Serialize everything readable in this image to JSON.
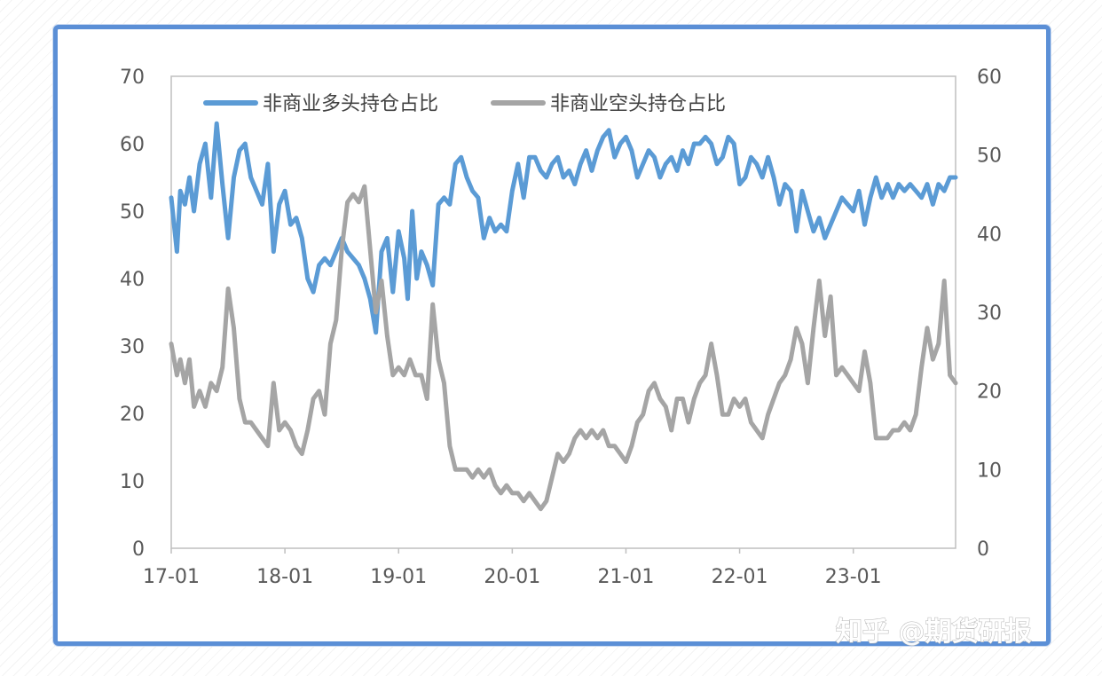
{
  "chart_data": {
    "type": "line",
    "left_axis": {
      "ticks": [
        "0",
        "10",
        "20",
        "30",
        "40",
        "50",
        "60",
        "70"
      ],
      "range": [
        0,
        70
      ]
    },
    "right_axis": {
      "ticks": [
        "0",
        "10",
        "20",
        "30",
        "40",
        "50",
        "60"
      ],
      "range": [
        0,
        60
      ]
    },
    "x_ticks": [
      "17-01",
      "18-01",
      "19-01",
      "20-01",
      "21-01",
      "22-01",
      "23-01"
    ],
    "x_range": [
      2017.0,
      2023.9
    ],
    "legend": {
      "position": "top-left"
    },
    "series": [
      {
        "name": "非商业多头持仓占比",
        "axis": "left",
        "color": "#5b9bd5",
        "points": [
          [
            2017.0,
            52
          ],
          [
            2017.05,
            44
          ],
          [
            2017.08,
            53
          ],
          [
            2017.12,
            51
          ],
          [
            2017.16,
            55
          ],
          [
            2017.2,
            50
          ],
          [
            2017.25,
            57
          ],
          [
            2017.3,
            60
          ],
          [
            2017.35,
            52
          ],
          [
            2017.4,
            63
          ],
          [
            2017.45,
            54
          ],
          [
            2017.5,
            46
          ],
          [
            2017.55,
            55
          ],
          [
            2017.6,
            59
          ],
          [
            2017.65,
            60
          ],
          [
            2017.7,
            55
          ],
          [
            2017.75,
            53
          ],
          [
            2017.8,
            51
          ],
          [
            2017.85,
            57
          ],
          [
            2017.9,
            44
          ],
          [
            2017.95,
            51
          ],
          [
            2018.0,
            53
          ],
          [
            2018.05,
            48
          ],
          [
            2018.1,
            49
          ],
          [
            2018.15,
            46
          ],
          [
            2018.2,
            40
          ],
          [
            2018.25,
            38
          ],
          [
            2018.3,
            42
          ],
          [
            2018.35,
            43
          ],
          [
            2018.4,
            42
          ],
          [
            2018.45,
            44
          ],
          [
            2018.5,
            46
          ],
          [
            2018.55,
            44
          ],
          [
            2018.6,
            43
          ],
          [
            2018.65,
            42
          ],
          [
            2018.7,
            40
          ],
          [
            2018.75,
            37
          ],
          [
            2018.8,
            32
          ],
          [
            2018.85,
            44
          ],
          [
            2018.9,
            46
          ],
          [
            2018.95,
            38
          ],
          [
            2019.0,
            47
          ],
          [
            2019.05,
            43
          ],
          [
            2019.08,
            37
          ],
          [
            2019.12,
            50
          ],
          [
            2019.16,
            40
          ],
          [
            2019.2,
            44
          ],
          [
            2019.25,
            42
          ],
          [
            2019.3,
            39
          ],
          [
            2019.35,
            51
          ],
          [
            2019.4,
            52
          ],
          [
            2019.45,
            51
          ],
          [
            2019.5,
            57
          ],
          [
            2019.55,
            58
          ],
          [
            2019.6,
            55
          ],
          [
            2019.65,
            53
          ],
          [
            2019.7,
            52
          ],
          [
            2019.75,
            46
          ],
          [
            2019.8,
            49
          ],
          [
            2019.85,
            47
          ],
          [
            2019.9,
            48
          ],
          [
            2019.95,
            47
          ],
          [
            2020.0,
            53
          ],
          [
            2020.05,
            57
          ],
          [
            2020.1,
            52
          ],
          [
            2020.15,
            58
          ],
          [
            2020.2,
            58
          ],
          [
            2020.25,
            56
          ],
          [
            2020.3,
            55
          ],
          [
            2020.35,
            57
          ],
          [
            2020.4,
            58
          ],
          [
            2020.45,
            55
          ],
          [
            2020.5,
            56
          ],
          [
            2020.55,
            54
          ],
          [
            2020.6,
            57
          ],
          [
            2020.65,
            59
          ],
          [
            2020.7,
            56
          ],
          [
            2020.75,
            59
          ],
          [
            2020.8,
            61
          ],
          [
            2020.85,
            62
          ],
          [
            2020.9,
            58
          ],
          [
            2020.95,
            60
          ],
          [
            2021.0,
            61
          ],
          [
            2021.05,
            59
          ],
          [
            2021.1,
            55
          ],
          [
            2021.15,
            57
          ],
          [
            2021.2,
            59
          ],
          [
            2021.25,
            58
          ],
          [
            2021.3,
            55
          ],
          [
            2021.35,
            57
          ],
          [
            2021.4,
            58
          ],
          [
            2021.45,
            56
          ],
          [
            2021.5,
            59
          ],
          [
            2021.55,
            57
          ],
          [
            2021.6,
            60
          ],
          [
            2021.65,
            60
          ],
          [
            2021.7,
            61
          ],
          [
            2021.75,
            60
          ],
          [
            2021.8,
            57
          ],
          [
            2021.85,
            58
          ],
          [
            2021.9,
            61
          ],
          [
            2021.95,
            60
          ],
          [
            2022.0,
            54
          ],
          [
            2022.05,
            55
          ],
          [
            2022.1,
            58
          ],
          [
            2022.15,
            57
          ],
          [
            2022.2,
            55
          ],
          [
            2022.25,
            58
          ],
          [
            2022.3,
            55
          ],
          [
            2022.35,
            51
          ],
          [
            2022.4,
            54
          ],
          [
            2022.45,
            53
          ],
          [
            2022.5,
            47
          ],
          [
            2022.55,
            53
          ],
          [
            2022.6,
            50
          ],
          [
            2022.65,
            47
          ],
          [
            2022.7,
            49
          ],
          [
            2022.75,
            46
          ],
          [
            2022.8,
            48
          ],
          [
            2022.85,
            50
          ],
          [
            2022.9,
            52
          ],
          [
            2022.95,
            51
          ],
          [
            2023.0,
            50
          ],
          [
            2023.05,
            53
          ],
          [
            2023.1,
            48
          ],
          [
            2023.15,
            52
          ],
          [
            2023.2,
            55
          ],
          [
            2023.25,
            52
          ],
          [
            2023.3,
            54
          ],
          [
            2023.35,
            52
          ],
          [
            2023.4,
            54
          ],
          [
            2023.45,
            53
          ],
          [
            2023.5,
            54
          ],
          [
            2023.55,
            53
          ],
          [
            2023.6,
            52
          ],
          [
            2023.65,
            54
          ],
          [
            2023.7,
            51
          ],
          [
            2023.75,
            54
          ],
          [
            2023.8,
            53
          ],
          [
            2023.85,
            55
          ],
          [
            2023.9,
            55
          ]
        ]
      },
      {
        "name": "非商业空头持仓占比",
        "axis": "right",
        "color": "#a5a5a5",
        "points": [
          [
            2017.0,
            26
          ],
          [
            2017.05,
            22
          ],
          [
            2017.08,
            24
          ],
          [
            2017.12,
            21
          ],
          [
            2017.16,
            24
          ],
          [
            2017.2,
            18
          ],
          [
            2017.25,
            20
          ],
          [
            2017.3,
            18
          ],
          [
            2017.35,
            21
          ],
          [
            2017.4,
            20
          ],
          [
            2017.45,
            23
          ],
          [
            2017.5,
            33
          ],
          [
            2017.55,
            28
          ],
          [
            2017.6,
            19
          ],
          [
            2017.65,
            16
          ],
          [
            2017.7,
            16
          ],
          [
            2017.75,
            15
          ],
          [
            2017.8,
            14
          ],
          [
            2017.85,
            13
          ],
          [
            2017.9,
            21
          ],
          [
            2017.95,
            15
          ],
          [
            2018.0,
            16
          ],
          [
            2018.05,
            15
          ],
          [
            2018.1,
            13
          ],
          [
            2018.15,
            12
          ],
          [
            2018.2,
            15
          ],
          [
            2018.25,
            19
          ],
          [
            2018.3,
            20
          ],
          [
            2018.35,
            17
          ],
          [
            2018.4,
            26
          ],
          [
            2018.45,
            29
          ],
          [
            2018.5,
            38
          ],
          [
            2018.55,
            44
          ],
          [
            2018.6,
            45
          ],
          [
            2018.65,
            44
          ],
          [
            2018.7,
            46
          ],
          [
            2018.75,
            38
          ],
          [
            2018.8,
            30
          ],
          [
            2018.85,
            34
          ],
          [
            2018.9,
            27
          ],
          [
            2018.95,
            22
          ],
          [
            2019.0,
            23
          ],
          [
            2019.05,
            22
          ],
          [
            2019.1,
            24
          ],
          [
            2019.15,
            22
          ],
          [
            2019.2,
            22
          ],
          [
            2019.25,
            19
          ],
          [
            2019.3,
            31
          ],
          [
            2019.35,
            24
          ],
          [
            2019.4,
            21
          ],
          [
            2019.45,
            13
          ],
          [
            2019.5,
            10
          ],
          [
            2019.55,
            10
          ],
          [
            2019.6,
            10
          ],
          [
            2019.65,
            9
          ],
          [
            2019.7,
            10
          ],
          [
            2019.75,
            9
          ],
          [
            2019.8,
            10
          ],
          [
            2019.85,
            8
          ],
          [
            2019.9,
            7
          ],
          [
            2019.95,
            8
          ],
          [
            2020.0,
            7
          ],
          [
            2020.05,
            7
          ],
          [
            2020.1,
            6
          ],
          [
            2020.15,
            7
          ],
          [
            2020.2,
            6
          ],
          [
            2020.25,
            5
          ],
          [
            2020.3,
            6
          ],
          [
            2020.35,
            9
          ],
          [
            2020.4,
            12
          ],
          [
            2020.45,
            11
          ],
          [
            2020.5,
            12
          ],
          [
            2020.55,
            14
          ],
          [
            2020.6,
            15
          ],
          [
            2020.65,
            14
          ],
          [
            2020.7,
            15
          ],
          [
            2020.75,
            14
          ],
          [
            2020.8,
            15
          ],
          [
            2020.85,
            13
          ],
          [
            2020.9,
            13
          ],
          [
            2020.95,
            12
          ],
          [
            2021.0,
            11
          ],
          [
            2021.05,
            13
          ],
          [
            2021.1,
            16
          ],
          [
            2021.15,
            17
          ],
          [
            2021.2,
            20
          ],
          [
            2021.25,
            21
          ],
          [
            2021.3,
            19
          ],
          [
            2021.35,
            18
          ],
          [
            2021.4,
            15
          ],
          [
            2021.45,
            19
          ],
          [
            2021.5,
            19
          ],
          [
            2021.55,
            16
          ],
          [
            2021.6,
            19
          ],
          [
            2021.65,
            21
          ],
          [
            2021.7,
            22
          ],
          [
            2021.75,
            26
          ],
          [
            2021.8,
            22
          ],
          [
            2021.85,
            17
          ],
          [
            2021.9,
            17
          ],
          [
            2021.95,
            19
          ],
          [
            2022.0,
            18
          ],
          [
            2022.05,
            19
          ],
          [
            2022.1,
            16
          ],
          [
            2022.15,
            15
          ],
          [
            2022.2,
            14
          ],
          [
            2022.25,
            17
          ],
          [
            2022.3,
            19
          ],
          [
            2022.35,
            21
          ],
          [
            2022.4,
            22
          ],
          [
            2022.45,
            24
          ],
          [
            2022.5,
            28
          ],
          [
            2022.55,
            26
          ],
          [
            2022.6,
            21
          ],
          [
            2022.65,
            28
          ],
          [
            2022.7,
            34
          ],
          [
            2022.75,
            27
          ],
          [
            2022.8,
            32
          ],
          [
            2022.85,
            22
          ],
          [
            2022.9,
            23
          ],
          [
            2022.95,
            22
          ],
          [
            2023.0,
            21
          ],
          [
            2023.05,
            20
          ],
          [
            2023.1,
            25
          ],
          [
            2023.15,
            21
          ],
          [
            2023.2,
            14
          ],
          [
            2023.25,
            14
          ],
          [
            2023.3,
            14
          ],
          [
            2023.35,
            15
          ],
          [
            2023.4,
            15
          ],
          [
            2023.45,
            16
          ],
          [
            2023.5,
            15
          ],
          [
            2023.55,
            17
          ],
          [
            2023.6,
            23
          ],
          [
            2023.65,
            28
          ],
          [
            2023.7,
            24
          ],
          [
            2023.75,
            26
          ],
          [
            2023.8,
            34
          ],
          [
            2023.85,
            22
          ],
          [
            2023.9,
            21
          ]
        ]
      }
    ]
  },
  "watermark": "知乎 @期货研报"
}
